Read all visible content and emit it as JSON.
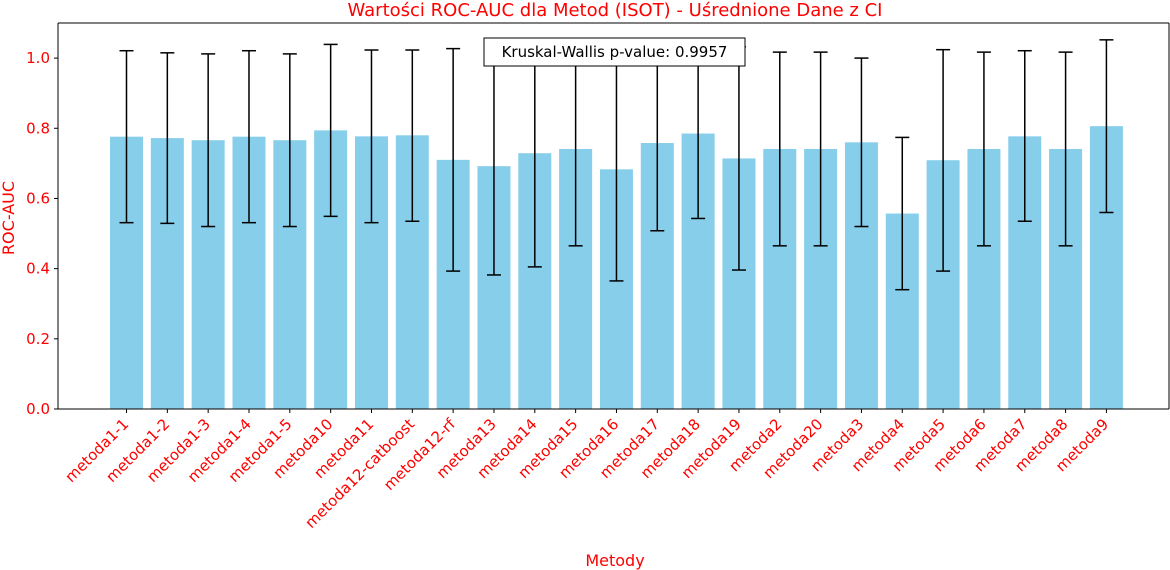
{
  "chart_data": {
    "type": "bar",
    "title": "Wartości ROC-AUC dla Metod (ISOT) - Uśrednione Dane z CI",
    "xlabel": "Metody",
    "ylabel": "ROC-AUC",
    "ylim": [
      0,
      1.1
    ],
    "yticks": [
      0.0,
      0.2,
      0.4,
      0.6,
      0.8,
      1.0
    ],
    "ytick_labels": [
      "0.0",
      "0.2",
      "0.4",
      "0.6",
      "0.8",
      "1.0"
    ],
    "grid": false,
    "categories": [
      "metoda1-1",
      "metoda1-2",
      "metoda1-3",
      "metoda1-4",
      "metoda1-5",
      "metoda10",
      "metoda11",
      "metoda12-catboost",
      "metoda12-rf",
      "metoda13",
      "metoda14",
      "metoda15",
      "metoda16",
      "metoda17",
      "metoda18",
      "metoda19",
      "metoda2",
      "metoda20",
      "metoda3",
      "metoda4",
      "metoda5",
      "metoda6",
      "metoda7",
      "metoda8",
      "metoda9"
    ],
    "values": [
      0.776,
      0.772,
      0.766,
      0.776,
      0.766,
      0.794,
      0.777,
      0.78,
      0.71,
      0.692,
      0.729,
      0.741,
      0.683,
      0.758,
      0.785,
      0.714,
      0.741,
      0.741,
      0.76,
      0.557,
      0.709,
      0.741,
      0.777,
      0.741,
      0.806
    ],
    "ci_lower": [
      0.531,
      0.529,
      0.52,
      0.531,
      0.52,
      0.549,
      0.531,
      0.535,
      0.393,
      0.382,
      0.405,
      0.465,
      0.365,
      0.508,
      0.543,
      0.396,
      0.465,
      0.465,
      0.52,
      0.34,
      0.393,
      0.465,
      0.535,
      0.465,
      0.56
    ],
    "ci_upper": [
      1.021,
      1.015,
      1.012,
      1.021,
      1.012,
      1.039,
      1.023,
      1.023,
      1.027,
      1.002,
      1.053,
      1.017,
      1.001,
      1.008,
      1.027,
      1.032,
      1.017,
      1.017,
      1.0,
      0.774,
      1.024,
      1.017,
      1.021,
      1.017,
      1.052
    ],
    "bar_color": "#87ceeb",
    "text_color": "#ff0000",
    "annotation": "Kruskal-Wallis p-value: 0.9957"
  }
}
